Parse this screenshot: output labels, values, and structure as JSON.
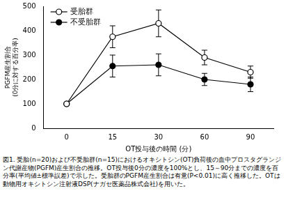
{
  "chart_data": {
    "type": "line",
    "x_label": "OT投与後の時間 (分)",
    "y_label": "PGFM産生割合\n(0分に対する百分率)",
    "caption": "図1. 受胎(n=20)および不受胎群(n=15)におけるオキシトシン(OT)負荷後の血中プロスタグランジン代謝産物(PGFM)産生割合の推移。OT投与後0分の濃度を100%とし、15～90分までの濃度を百分率(平均値±標準誤差)で示した。受胎群のPGFM産生割合は有意(P<0.01)に高く推移した。OTは動物用オキシトシン注射液DSP(ナガセ医薬品株式会社)を用いた。",
    "categories": [
      "0",
      "15",
      "30",
      "60",
      "90"
    ],
    "series": [
      {
        "name": "受胎群",
        "color": "#000000",
        "marker": "circle-open",
        "values": [
          100,
          375,
          430,
          290,
          230
        ],
        "errors": [
          0,
          45,
          55,
          30,
          25
        ]
      },
      {
        "name": "不受胎群",
        "color": "#000000",
        "marker": "circle",
        "values": [
          100,
          255,
          260,
          200,
          180
        ],
        "errors": [
          0,
          45,
          45,
          25,
          30
        ]
      }
    ],
    "ylim": [
      0,
      500
    ],
    "yticks": [
      0,
      100,
      200,
      300,
      400,
      500
    ],
    "grid": false,
    "legend": "upper left"
  }
}
